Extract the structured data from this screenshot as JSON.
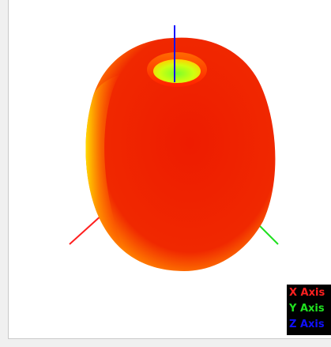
{
  "legend": {
    "x_label": "X Axis",
    "y_label": "Y Axis",
    "z_label": "Z Axis"
  },
  "colors": {
    "x_axis": "#ff2020",
    "y_axis": "#20e020",
    "z_axis": "#1010ff",
    "surface_main": "#ee1c00",
    "surface_highlight": "#ffd400",
    "surface_inner": "#7cff2a",
    "legend_background": "#000000"
  },
  "axis_icons": [
    "x-axis-line",
    "y-axis-line",
    "z-axis-line"
  ]
}
